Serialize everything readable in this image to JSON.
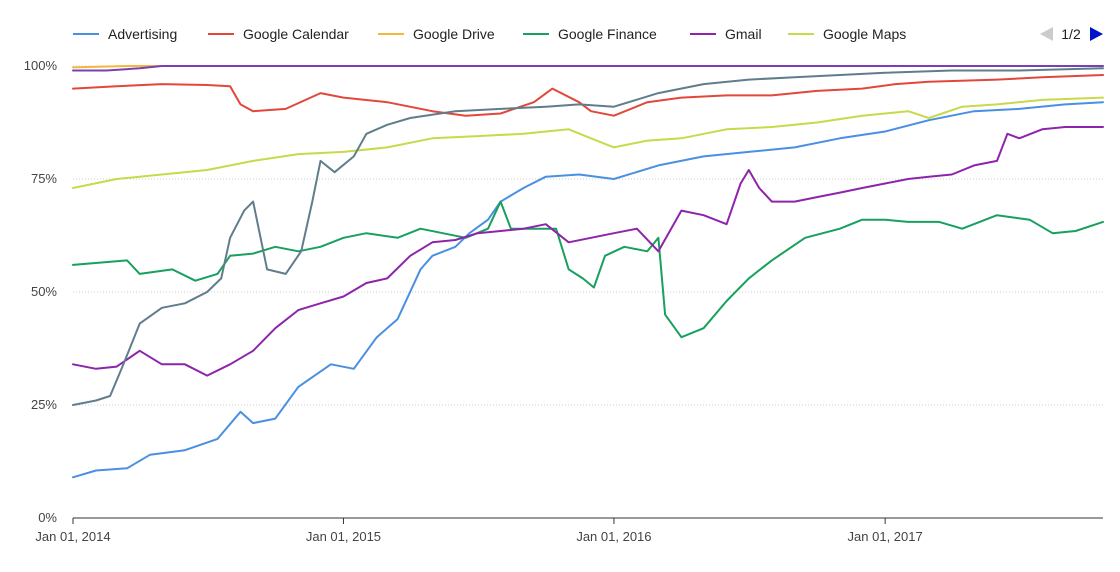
{
  "colors": {
    "grid": "#cccccc",
    "axis": "#333333",
    "pager_prev_disabled": "#cccccc",
    "pager_next_active": "#0011cc"
  },
  "legend": {
    "pager_label": "1/2",
    "prev_icon": "left-triangle-icon",
    "next_icon": "right-triangle-icon"
  },
  "chart_data": {
    "type": "line",
    "xlabel": "",
    "ylabel": "",
    "x_range": [
      "2014-01-01",
      "2017-10-22"
    ],
    "ylim": [
      0,
      100
    ],
    "y_ticks": [
      0,
      25,
      50,
      75,
      100
    ],
    "y_tick_labels": [
      "0%",
      "25%",
      "50%",
      "75%",
      "100%"
    ],
    "x_ticks": [
      "2014-01-01",
      "2015-01-01",
      "2016-01-01",
      "2017-01-01"
    ],
    "x_tick_labels": [
      "Jan 01, 2014",
      "Jan 01, 2015",
      "Jan 01, 2016",
      "Jan 01, 2017"
    ],
    "grid": "horizontal",
    "legend_position": "top",
    "series": [
      {
        "name": "Advertising",
        "color": "#4a90e2",
        "legend": true,
        "points": [
          [
            "2014-01-01",
            9
          ],
          [
            "2014-02-01",
            10.5
          ],
          [
            "2014-03-15",
            11
          ],
          [
            "2014-04-15",
            14
          ],
          [
            "2014-06-01",
            15
          ],
          [
            "2014-07-15",
            17.5
          ],
          [
            "2014-08-15",
            23.5
          ],
          [
            "2014-09-01",
            21
          ],
          [
            "2014-10-01",
            22
          ],
          [
            "2014-11-01",
            29
          ],
          [
            "2014-12-15",
            34
          ],
          [
            "2015-01-15",
            33
          ],
          [
            "2015-02-15",
            40
          ],
          [
            "2015-03-15",
            44
          ],
          [
            "2015-04-15",
            55
          ],
          [
            "2015-05-01",
            58
          ],
          [
            "2015-06-01",
            60
          ],
          [
            "2015-06-20",
            63
          ],
          [
            "2015-07-15",
            66
          ],
          [
            "2015-08-01",
            70
          ],
          [
            "2015-09-01",
            73
          ],
          [
            "2015-10-01",
            75.5
          ],
          [
            "2015-11-15",
            76
          ],
          [
            "2016-01-01",
            75
          ],
          [
            "2016-03-01",
            78
          ],
          [
            "2016-05-01",
            80
          ],
          [
            "2016-07-01",
            81
          ],
          [
            "2016-09-01",
            82
          ],
          [
            "2016-11-01",
            84
          ],
          [
            "2017-01-01",
            85.5
          ],
          [
            "2017-03-01",
            88
          ],
          [
            "2017-05-01",
            90
          ],
          [
            "2017-07-01",
            90.5
          ],
          [
            "2017-09-01",
            91.5
          ],
          [
            "2017-10-22",
            92
          ]
        ]
      },
      {
        "name": "Google Calendar",
        "color": "#e2473b",
        "legend": true,
        "points": [
          [
            "2014-01-01",
            95
          ],
          [
            "2014-03-01",
            95.5
          ],
          [
            "2014-05-01",
            96
          ],
          [
            "2014-07-01",
            95.8
          ],
          [
            "2014-08-01",
            95.5
          ],
          [
            "2014-08-15",
            91.5
          ],
          [
            "2014-09-01",
            90
          ],
          [
            "2014-10-15",
            90.5
          ],
          [
            "2014-12-01",
            94
          ],
          [
            "2015-01-01",
            93
          ],
          [
            "2015-03-01",
            92
          ],
          [
            "2015-05-01",
            90
          ],
          [
            "2015-06-15",
            89
          ],
          [
            "2015-08-01",
            89.5
          ],
          [
            "2015-09-15",
            92
          ],
          [
            "2015-10-10",
            95
          ],
          [
            "2015-11-15",
            92
          ],
          [
            "2015-12-01",
            90
          ],
          [
            "2016-01-01",
            89
          ],
          [
            "2016-02-15",
            92
          ],
          [
            "2016-04-01",
            93
          ],
          [
            "2016-06-01",
            93.5
          ],
          [
            "2016-08-01",
            93.5
          ],
          [
            "2016-10-01",
            94.5
          ],
          [
            "2016-12-01",
            95
          ],
          [
            "2017-01-15",
            96
          ],
          [
            "2017-03-01",
            96.5
          ],
          [
            "2017-06-01",
            97
          ],
          [
            "2017-08-01",
            97.5
          ],
          [
            "2017-10-22",
            98
          ]
        ]
      },
      {
        "name": "Google Drive",
        "color": "#f5b73b",
        "legend": true,
        "points": [
          [
            "2014-01-01",
            99.7
          ],
          [
            "2014-03-15",
            100
          ],
          [
            "2017-10-22",
            100
          ]
        ]
      },
      {
        "name": "Google Finance",
        "color": "#17a05e",
        "legend": true,
        "points": [
          [
            "2014-01-01",
            56
          ],
          [
            "2014-03-15",
            57
          ],
          [
            "2014-04-01",
            54
          ],
          [
            "2014-05-15",
            55
          ],
          [
            "2014-06-15",
            52.5
          ],
          [
            "2014-07-15",
            54
          ],
          [
            "2014-08-01",
            58
          ],
          [
            "2014-09-01",
            58.5
          ],
          [
            "2014-10-01",
            60
          ],
          [
            "2014-11-01",
            59
          ],
          [
            "2014-12-01",
            60
          ],
          [
            "2015-01-01",
            62
          ],
          [
            "2015-02-01",
            63
          ],
          [
            "2015-03-15",
            62
          ],
          [
            "2015-04-15",
            64
          ],
          [
            "2015-05-15",
            63
          ],
          [
            "2015-06-15",
            62
          ],
          [
            "2015-07-15",
            64
          ],
          [
            "2015-08-01",
            70
          ],
          [
            "2015-08-15",
            64
          ],
          [
            "2015-09-15",
            64
          ],
          [
            "2015-10-15",
            64
          ],
          [
            "2015-11-01",
            55
          ],
          [
            "2015-11-20",
            53
          ],
          [
            "2015-12-05",
            51
          ],
          [
            "2015-12-20",
            58
          ],
          [
            "2016-01-15",
            60
          ],
          [
            "2016-02-15",
            59
          ],
          [
            "2016-03-01",
            62
          ],
          [
            "2016-03-10",
            45
          ],
          [
            "2016-04-01",
            40
          ],
          [
            "2016-05-01",
            42
          ],
          [
            "2016-06-01",
            48
          ],
          [
            "2016-07-01",
            53
          ],
          [
            "2016-08-01",
            57
          ],
          [
            "2016-09-15",
            62
          ],
          [
            "2016-11-01",
            64
          ],
          [
            "2016-12-01",
            66
          ],
          [
            "2017-01-01",
            66
          ],
          [
            "2017-02-01",
            65.5
          ],
          [
            "2017-03-15",
            65.5
          ],
          [
            "2017-04-15",
            64
          ],
          [
            "2017-06-01",
            67
          ],
          [
            "2017-07-15",
            66
          ],
          [
            "2017-08-15",
            63
          ],
          [
            "2017-09-15",
            63.5
          ],
          [
            "2017-10-22",
            65.5
          ]
        ]
      },
      {
        "name": "Gmail",
        "color": "#8e24aa",
        "legend": true,
        "points": [
          [
            "2014-01-01",
            34
          ],
          [
            "2014-02-01",
            33
          ],
          [
            "2014-03-01",
            33.5
          ],
          [
            "2014-04-01",
            37
          ],
          [
            "2014-05-01",
            34
          ],
          [
            "2014-06-01",
            34
          ],
          [
            "2014-07-01",
            31.5
          ],
          [
            "2014-08-01",
            34
          ],
          [
            "2014-09-01",
            37
          ],
          [
            "2014-10-01",
            42
          ],
          [
            "2014-11-01",
            46
          ],
          [
            "2014-12-01",
            47.5
          ],
          [
            "2015-01-01",
            49
          ],
          [
            "2015-02-01",
            52
          ],
          [
            "2015-03-01",
            53
          ],
          [
            "2015-04-01",
            58
          ],
          [
            "2015-05-01",
            61
          ],
          [
            "2015-06-01",
            61.5
          ],
          [
            "2015-07-01",
            63
          ],
          [
            "2015-08-01",
            63.5
          ],
          [
            "2015-09-01",
            64
          ],
          [
            "2015-10-01",
            65
          ],
          [
            "2015-11-01",
            61
          ],
          [
            "2015-12-01",
            62
          ],
          [
            "2016-01-01",
            63
          ],
          [
            "2016-02-01",
            64
          ],
          [
            "2016-03-01",
            59
          ],
          [
            "2016-04-01",
            68
          ],
          [
            "2016-05-01",
            67
          ],
          [
            "2016-06-01",
            65
          ],
          [
            "2016-06-20",
            74
          ],
          [
            "2016-07-01",
            77
          ],
          [
            "2016-07-15",
            73
          ],
          [
            "2016-08-01",
            70
          ],
          [
            "2016-09-01",
            70
          ],
          [
            "2016-10-01",
            71
          ],
          [
            "2016-11-01",
            72
          ],
          [
            "2016-12-01",
            73
          ],
          [
            "2017-01-01",
            74
          ],
          [
            "2017-02-01",
            75
          ],
          [
            "2017-03-01",
            75.5
          ],
          [
            "2017-04-01",
            76
          ],
          [
            "2017-05-01",
            78
          ],
          [
            "2017-06-01",
            79
          ],
          [
            "2017-06-15",
            85
          ],
          [
            "2017-07-01",
            84
          ],
          [
            "2017-08-01",
            86
          ],
          [
            "2017-09-01",
            86.5
          ],
          [
            "2017-10-22",
            86.5
          ]
        ]
      },
      {
        "name": "Google Maps",
        "color": "#c8d94a",
        "legend": true,
        "points": [
          [
            "2014-01-01",
            73
          ],
          [
            "2014-03-01",
            75
          ],
          [
            "2014-05-01",
            76
          ],
          [
            "2014-07-01",
            77
          ],
          [
            "2014-09-01",
            79
          ],
          [
            "2014-11-01",
            80.5
          ],
          [
            "2015-01-01",
            81
          ],
          [
            "2015-03-01",
            82
          ],
          [
            "2015-05-01",
            84
          ],
          [
            "2015-07-01",
            84.5
          ],
          [
            "2015-09-01",
            85
          ],
          [
            "2015-11-01",
            86
          ],
          [
            "2015-12-01",
            84
          ],
          [
            "2016-01-01",
            82
          ],
          [
            "2016-02-15",
            83.5
          ],
          [
            "2016-04-01",
            84
          ],
          [
            "2016-06-01",
            86
          ],
          [
            "2016-08-01",
            86.5
          ],
          [
            "2016-10-01",
            87.5
          ],
          [
            "2016-12-01",
            89
          ],
          [
            "2017-02-01",
            90
          ],
          [
            "2017-03-01",
            88.5
          ],
          [
            "2017-04-15",
            91
          ],
          [
            "2017-06-01",
            91.5
          ],
          [
            "2017-08-01",
            92.5
          ],
          [
            "2017-10-22",
            93
          ]
        ]
      },
      {
        "name": "",
        "color": "#607d8b",
        "legend": false,
        "points": [
          [
            "2014-01-01",
            25
          ],
          [
            "2014-02-01",
            26
          ],
          [
            "2014-02-20",
            27
          ],
          [
            "2014-03-10",
            34
          ],
          [
            "2014-04-01",
            43
          ],
          [
            "2014-05-01",
            46.5
          ],
          [
            "2014-06-01",
            47.5
          ],
          [
            "2014-07-01",
            50
          ],
          [
            "2014-07-20",
            53
          ],
          [
            "2014-08-01",
            62
          ],
          [
            "2014-08-20",
            68
          ],
          [
            "2014-09-01",
            70
          ],
          [
            "2014-09-20",
            55
          ],
          [
            "2014-10-15",
            54
          ],
          [
            "2014-11-05",
            59
          ],
          [
            "2014-11-20",
            70
          ],
          [
            "2014-12-01",
            79
          ],
          [
            "2014-12-20",
            76.5
          ],
          [
            "2015-01-15",
            80
          ],
          [
            "2015-02-01",
            85
          ],
          [
            "2015-03-01",
            87
          ],
          [
            "2015-04-01",
            88.5
          ],
          [
            "2015-06-01",
            90
          ],
          [
            "2015-08-01",
            90.5
          ],
          [
            "2015-10-01",
            91
          ],
          [
            "2015-11-15",
            91.5
          ],
          [
            "2016-01-01",
            91
          ],
          [
            "2016-03-01",
            94
          ],
          [
            "2016-05-01",
            96
          ],
          [
            "2016-07-01",
            97
          ],
          [
            "2016-09-01",
            97.5
          ],
          [
            "2016-11-01",
            98
          ],
          [
            "2017-01-01",
            98.5
          ],
          [
            "2017-04-01",
            99
          ],
          [
            "2017-07-01",
            99
          ],
          [
            "2017-10-22",
            99.5
          ]
        ]
      },
      {
        "name": "",
        "color": "#7b3fb5",
        "legend": false,
        "points": [
          [
            "2014-01-01",
            99
          ],
          [
            "2014-02-15",
            99
          ],
          [
            "2014-04-01",
            99.5
          ],
          [
            "2014-05-01",
            100
          ],
          [
            "2017-10-22",
            100
          ]
        ]
      }
    ]
  }
}
